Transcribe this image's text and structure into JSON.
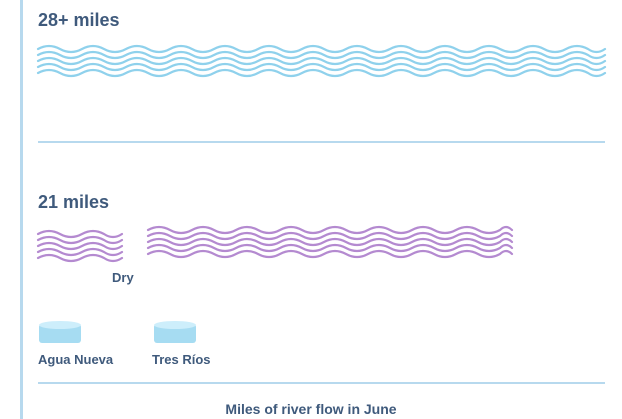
{
  "title": "28+ miles",
  "section2_title": "21 miles",
  "dry_label": "Dry",
  "stations": [
    {
      "name": "Agua Nueva"
    },
    {
      "name": "Tres Ríos"
    }
  ],
  "caption": "Miles of river flow in June",
  "colors": {
    "text": "#3f5a7c",
    "rule": "#b7d9ee",
    "wave_top": "#8fd1ec",
    "wave_bottom": "#b48ad0",
    "station_fill": "#a6dcf2",
    "station_top": "#cdeefb"
  },
  "icons": {
    "station": "wastewater-plant-icon",
    "river": "river-wave-icon"
  }
}
